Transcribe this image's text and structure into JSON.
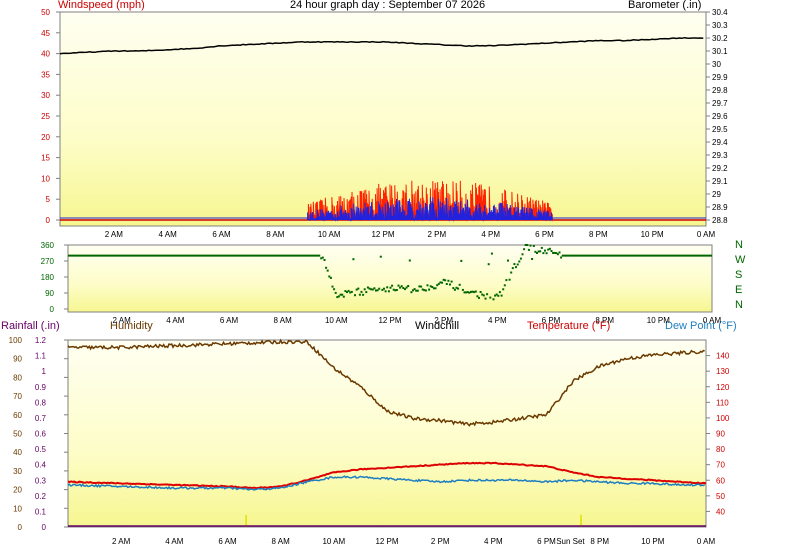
{
  "header": {
    "title": "24 hour graph day : September 07 2026",
    "windspeed_label": "Windspeed (mph)",
    "barometer_label": "Barometer (.in)",
    "rainfall_label": "Rainfall (.in)",
    "humidity_label": "Humidity",
    "windchill_label": "Windchill",
    "temperature_label": "Temperature (°F)",
    "dewpoint_label": "Dew Point (°F)"
  },
  "colors": {
    "windspeed": "#cc0000",
    "barometer": "#000000",
    "gust": "#ff2200",
    "avgwind": "#2222dd",
    "direction": "#006600",
    "rainfall": "#660066",
    "humidity": "#6b3a00",
    "windchill": "#000000",
    "temperature": "#dd0000",
    "dewpoint": "#1e7fc0",
    "panel_bg": "#ffffe6"
  },
  "chart_data": [
    {
      "type": "line",
      "title": "24 hour graph day : September 07 2026",
      "x_ticks": [
        "2 AM",
        "4 AM",
        "6 AM",
        "8 AM",
        "10 AM",
        "12 PM",
        "2 PM",
        "4 PM",
        "6 PM",
        "8 PM",
        "10 PM",
        "0 AM"
      ],
      "y_left": {
        "label": "Windspeed (mph)",
        "range": [
          0,
          50
        ],
        "ticks": [
          0,
          5,
          10,
          15,
          20,
          25,
          30,
          35,
          40,
          45,
          50
        ]
      },
      "y_right": {
        "label": "Barometer (.in)",
        "range": [
          28.8,
          30.4
        ],
        "ticks": [
          "28.8",
          "28.9",
          "29",
          "29.1",
          "29.2",
          "29.3",
          "29.4",
          "29.5",
          "29.6",
          "29.7",
          "29.8",
          "29.9",
          "30",
          "30.1",
          "30.2",
          "30.3",
          "30.4"
        ]
      },
      "series": [
        {
          "name": "Barometer",
          "axis": "right",
          "x": [
            0,
            1,
            2,
            3,
            4,
            5,
            6,
            7,
            8,
            9,
            10,
            11,
            12,
            13,
            14,
            15,
            16,
            17,
            18,
            19,
            20,
            21,
            22,
            23,
            24
          ],
          "y": [
            30.08,
            30.09,
            30.1,
            30.1,
            30.11,
            30.12,
            30.14,
            30.15,
            30.16,
            30.17,
            30.17,
            30.17,
            30.17,
            30.16,
            30.15,
            30.14,
            30.14,
            30.15,
            30.16,
            30.17,
            30.18,
            30.18,
            30.19,
            30.2,
            30.2
          ]
        },
        {
          "name": "Wind gust",
          "axis": "left",
          "x_range": [
            9.2,
            18.3
          ],
          "typical_max": 10
        },
        {
          "name": "Average wind",
          "axis": "left",
          "x_range": [
            9.2,
            18.3
          ],
          "typical_max": 5
        }
      ]
    },
    {
      "type": "scatter",
      "x_ticks": [
        "2 AM",
        "4 AM",
        "6 AM",
        "8 AM",
        "10 AM",
        "12 PM",
        "2 PM",
        "4 PM",
        "6 PM",
        "8 PM",
        "10 PM",
        "0 AM"
      ],
      "y_ticks": [
        0,
        90,
        180,
        270,
        360
      ],
      "y_range": [
        0,
        360
      ],
      "compass": [
        "N",
        "W",
        "S",
        "E",
        "N"
      ],
      "series": [
        {
          "name": "Wind direction",
          "x": [
            0,
            9.4,
            10,
            11,
            12,
            13,
            14,
            15,
            16,
            17,
            18.4,
            24
          ],
          "y": [
            300,
            300,
            80,
            100,
            120,
            110,
            150,
            90,
            60,
            350,
            300,
            300
          ]
        }
      ]
    },
    {
      "type": "line",
      "x_ticks": [
        "2 AM",
        "4 AM",
        "6 AM",
        "8 AM",
        "10 AM",
        "12 PM",
        "2 PM",
        "4 PM",
        "6 PM",
        "Sun Set",
        "8 PM",
        "10 PM",
        "0 AM"
      ],
      "y_rain": {
        "label": "Rainfall (.in)",
        "range": [
          0,
          1.2
        ],
        "ticks": [
          "0",
          "0.1",
          "0.2",
          "0.3",
          "0.4",
          "0.5",
          "0.6",
          "0.7",
          "0.8",
          "0.9",
          "1",
          "1.1",
          "1.2"
        ]
      },
      "y_humidity": {
        "label": "Humidity",
        "range": [
          0,
          100
        ],
        "ticks": [
          0,
          10,
          20,
          30,
          40,
          50,
          60,
          70,
          80,
          90,
          100
        ]
      },
      "y_temp": {
        "label": "Temperature (°F)",
        "range": [
          30,
          150
        ],
        "ticks": [
          40,
          50,
          60,
          70,
          80,
          90,
          100,
          110,
          120,
          130,
          140
        ]
      },
      "series": [
        {
          "name": "Humidity",
          "axis": "humidity",
          "x": [
            0,
            2,
            4,
            6,
            8,
            9,
            10,
            11,
            12,
            13,
            14,
            15,
            16,
            17,
            18,
            19,
            20,
            21,
            22,
            23,
            24
          ],
          "y": [
            96,
            96,
            97,
            98,
            99,
            99,
            85,
            75,
            62,
            58,
            57,
            55,
            56,
            58,
            60,
            78,
            86,
            90,
            92,
            93,
            94
          ]
        },
        {
          "name": "Temperature (°F)",
          "axis": "temp",
          "x": [
            0,
            2,
            4,
            6,
            7,
            8,
            9,
            10,
            11,
            12,
            13,
            14,
            15,
            16,
            17,
            18,
            19,
            20,
            21,
            22,
            23,
            24
          ],
          "y": [
            59,
            58,
            57,
            56,
            55,
            56,
            60,
            65,
            67,
            68,
            69,
            70,
            71,
            71,
            70,
            69,
            65,
            62,
            61,
            60,
            59,
            58
          ]
        },
        {
          "name": "Dew Point (°F)",
          "axis": "temp",
          "x": [
            0,
            2,
            4,
            6,
            7,
            8,
            9,
            10,
            11,
            12,
            13,
            14,
            15,
            16,
            17,
            18,
            19,
            20,
            21,
            22,
            23,
            24
          ],
          "y": [
            57,
            56,
            55,
            55,
            54,
            55,
            59,
            62,
            62,
            61,
            60,
            59,
            60,
            60,
            60,
            59,
            60,
            59,
            58,
            58,
            57,
            57
          ]
        },
        {
          "name": "Rainfall (.in)",
          "axis": "rain",
          "x": [
            0,
            24
          ],
          "y": [
            0,
            0
          ]
        }
      ]
    }
  ]
}
